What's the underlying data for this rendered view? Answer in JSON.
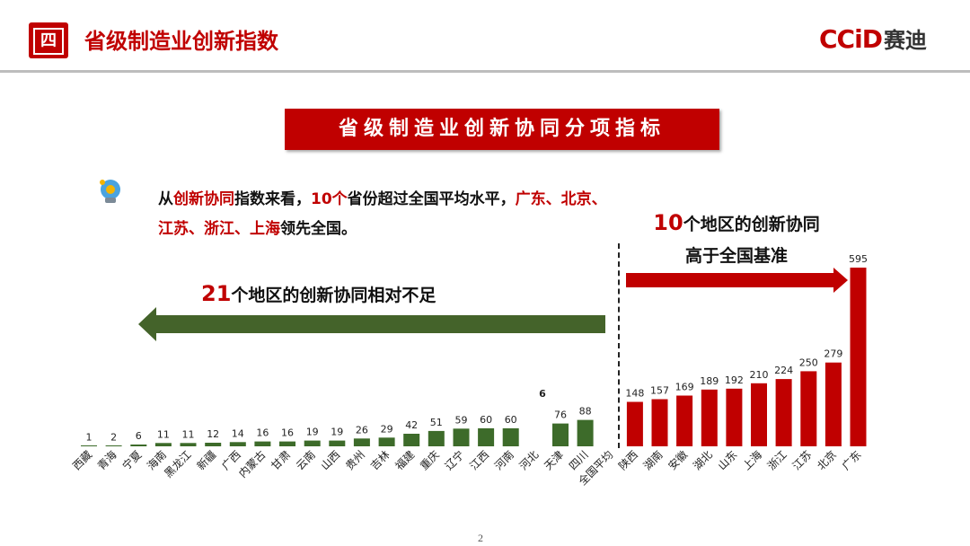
{
  "header": {
    "badge": "四",
    "title": "省级制造业创新指数",
    "logo_latin": "CCiD",
    "logo_cn": "赛迪"
  },
  "banner": "省级制造业创新协同分项指标",
  "summary": {
    "p1": "从",
    "p2": "创新协同",
    "p3": "指数来看，",
    "p4": "10个",
    "p5": "省份超过全国平均水平，",
    "p6": "广东、北京、江苏、浙江、上海",
    "p7": "领先全国。"
  },
  "right_note": {
    "num": "10",
    "line1": "个地区的创新协同",
    "line2": "高于全国基准"
  },
  "left_note": {
    "num": "21",
    "text": "个地区的创新协同相对不足"
  },
  "page_number": "2",
  "stray_label": "6",
  "colors": {
    "red": "#c00000",
    "green": "#3d6b2a",
    "dark_green": "#44632a"
  },
  "chart_data": {
    "type": "bar",
    "categories": [
      "西藏",
      "青海",
      "宁夏",
      "海南",
      "黑龙江",
      "新疆",
      "广西",
      "内蒙古",
      "甘肃",
      "云南",
      "山西",
      "贵州",
      "吉林",
      "福建",
      "重庆",
      "辽宁",
      "江西",
      "河南",
      "河北",
      "天津",
      "四川",
      "全国平均",
      "陕西",
      "湖南",
      "安徽",
      "湖北",
      "山东",
      "上海",
      "浙江",
      "江苏",
      "北京",
      "广东"
    ],
    "values": [
      1,
      2,
      6,
      11,
      11,
      12,
      14,
      16,
      16,
      19,
      19,
      26,
      29,
      42,
      51,
      59,
      60,
      60,
      null,
      76,
      88,
      null,
      148,
      157,
      169,
      189,
      192,
      210,
      224,
      250,
      279,
      595
    ],
    "value_labels": [
      "1",
      "2",
      "6",
      "11",
      "11",
      "12",
      "14",
      "16",
      "16",
      "19",
      "19",
      "26",
      "29",
      "42",
      "51",
      "59",
      "60",
      "60",
      "",
      "76",
      "88",
      "",
      "148",
      "157",
      "169",
      "189",
      "192",
      "210",
      "224",
      "250",
      "279",
      "595"
    ],
    "colors": [
      "green",
      "green",
      "green",
      "green",
      "green",
      "green",
      "green",
      "green",
      "green",
      "green",
      "green",
      "green",
      "green",
      "green",
      "green",
      "green",
      "green",
      "green",
      "green",
      "green",
      "green",
      "none",
      "red",
      "red",
      "red",
      "red",
      "red",
      "red",
      "red",
      "red",
      "red",
      "red"
    ],
    "ylim": [
      0,
      595
    ]
  }
}
